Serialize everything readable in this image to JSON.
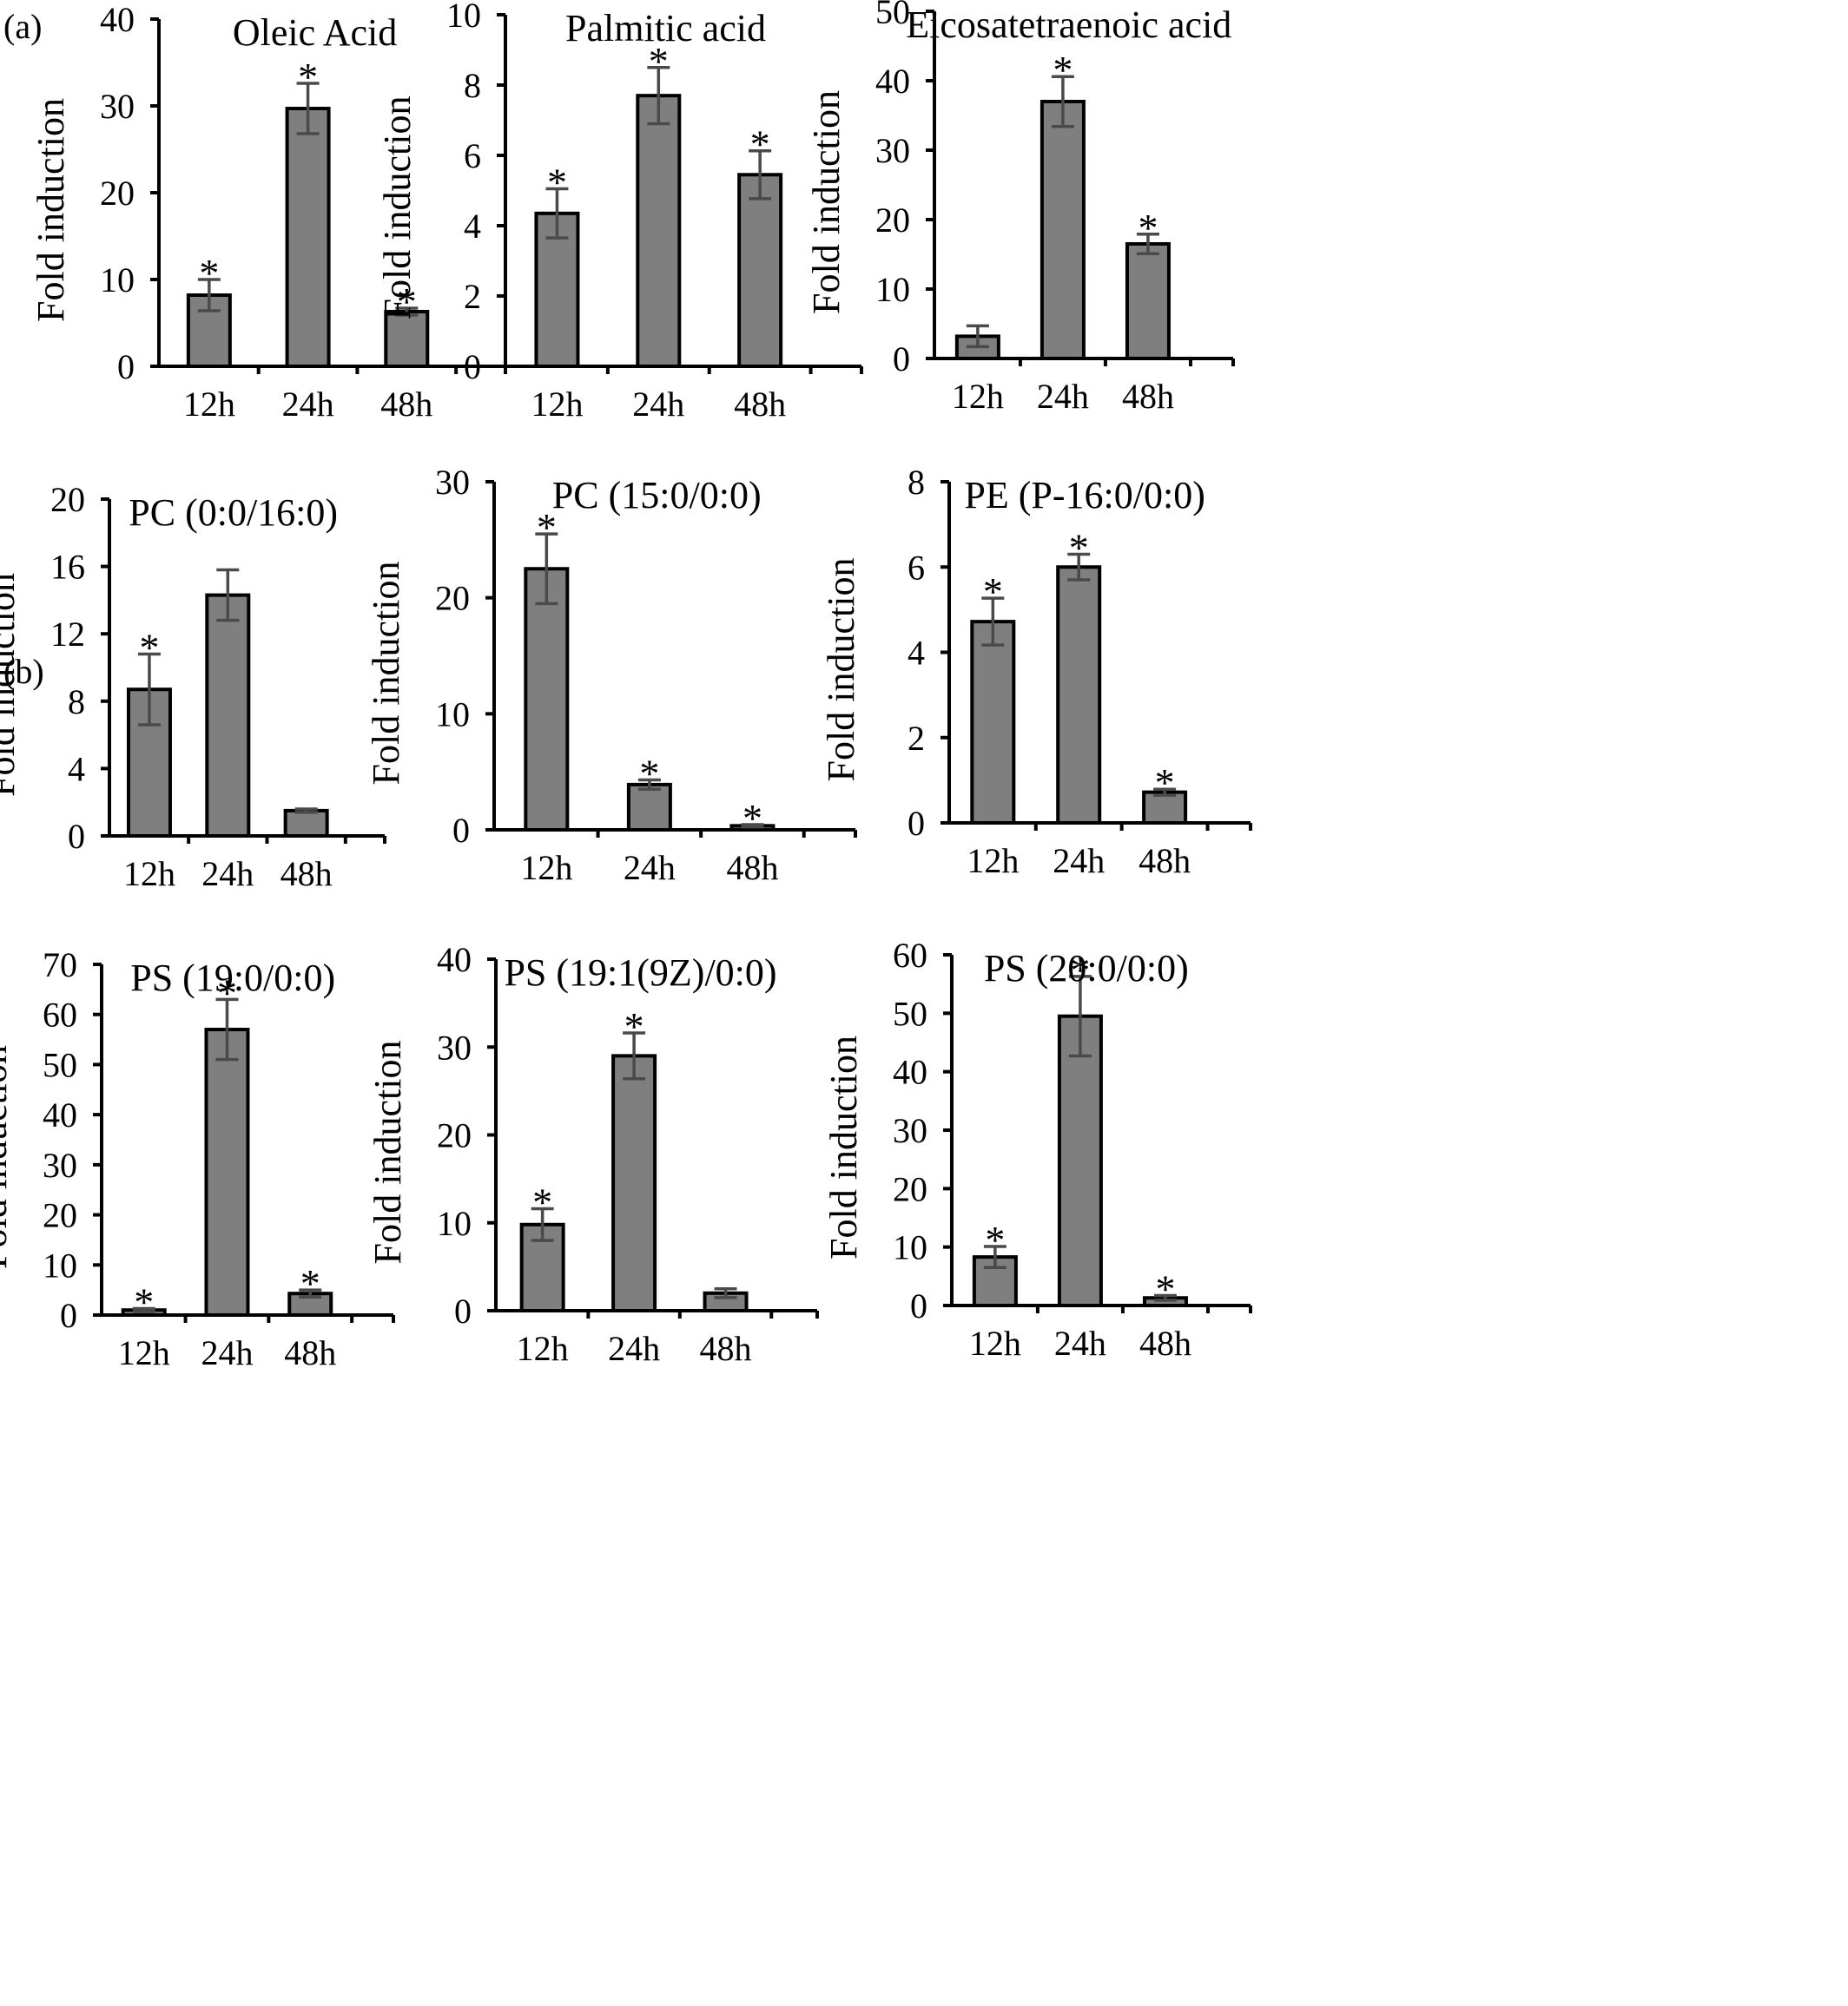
{
  "panel_labels": [
    "(a)",
    "(b)"
  ],
  "chart_data": [
    {
      "type": "bar",
      "title": "Oleic Acid",
      "ylabel": "Fold induction",
      "xlabel": "",
      "categories": [
        "12h",
        "24h",
        "48h"
      ],
      "values": [
        8.2,
        29.7,
        6.3
      ],
      "errors": [
        1.8,
        2.9,
        0.4
      ],
      "significant": [
        true,
        true,
        true
      ],
      "ylim": [
        0,
        40
      ],
      "yticks": [
        0,
        10,
        20,
        30,
        40
      ]
    },
    {
      "type": "bar",
      "title": "Palmitic acid",
      "ylabel": "Fold induction",
      "xlabel": "",
      "categories": [
        "12h",
        "24h",
        "48h"
      ],
      "values": [
        4.35,
        7.7,
        5.45
      ],
      "errors": [
        0.7,
        0.8,
        0.68
      ],
      "significant": [
        true,
        true,
        true
      ],
      "ylim": [
        0,
        10
      ],
      "yticks": [
        0,
        2,
        4,
        6,
        8,
        10
      ]
    },
    {
      "type": "bar",
      "title": "Eicosatetraenoic acid",
      "ylabel": "Fold induction",
      "xlabel": "",
      "categories": [
        "12h",
        "24h",
        "48h"
      ],
      "values": [
        3.2,
        37,
        16.5
      ],
      "errors": [
        1.5,
        3.6,
        1.4
      ],
      "significant": [
        false,
        true,
        true
      ],
      "ylim": [
        0,
        50
      ],
      "yticks": [
        0,
        10,
        20,
        30,
        40,
        50
      ]
    },
    {
      "type": "bar",
      "title": "PC (0:0/16:0)",
      "ylabel": "Fold induction",
      "xlabel": "",
      "categories": [
        "12h",
        "24h",
        "48h"
      ],
      "values": [
        8.7,
        14.3,
        1.5
      ],
      "errors": [
        2.1,
        1.5,
        0.1
      ],
      "significant": [
        true,
        false,
        false
      ],
      "ylim": [
        0,
        20
      ],
      "yticks": [
        0,
        4,
        8,
        12,
        16,
        20
      ]
    },
    {
      "type": "bar",
      "title": "PC (15:0/0:0)",
      "ylabel": "Fold induction",
      "xlabel": "",
      "categories": [
        "12h",
        "24h",
        "48h"
      ],
      "values": [
        22.5,
        3.9,
        0.35
      ],
      "errors": [
        3.0,
        0.4,
        0.1
      ],
      "significant": [
        true,
        true,
        true
      ],
      "ylim": [
        0,
        30
      ],
      "yticks": [
        0,
        10,
        20,
        30
      ]
    },
    {
      "type": "bar",
      "title": "PE (P-16:0/0:0)",
      "ylabel": "Fold induction",
      "xlabel": "",
      "categories": [
        "12h",
        "24h",
        "48h"
      ],
      "values": [
        4.72,
        6.0,
        0.72
      ],
      "errors": [
        0.55,
        0.3,
        0.07
      ],
      "significant": [
        true,
        true,
        true
      ],
      "ylim": [
        0,
        8
      ],
      "yticks": [
        0,
        2,
        4,
        6,
        8
      ]
    },
    {
      "type": "bar",
      "title": "PS (19:0/0:0)",
      "ylabel": "Fold induction",
      "xlabel": "",
      "categories": [
        "12h",
        "24h",
        "48h"
      ],
      "values": [
        1.0,
        57,
        4.3
      ],
      "errors": [
        0.3,
        6.0,
        0.7
      ],
      "significant": [
        true,
        true,
        true
      ],
      "ylim": [
        0,
        70
      ],
      "yticks": [
        0,
        10,
        20,
        30,
        40,
        50,
        60,
        70
      ]
    },
    {
      "type": "bar",
      "title": "PS (19:1(9Z)/0:0)",
      "ylabel": "Fold induction",
      "xlabel": "",
      "categories": [
        "12h",
        "24h",
        "48h"
      ],
      "values": [
        9.8,
        29,
        2.0
      ],
      "errors": [
        1.8,
        2.6,
        0.5
      ],
      "significant": [
        true,
        true,
        false
      ],
      "ylim": [
        0,
        40
      ],
      "yticks": [
        0,
        10,
        20,
        30,
        40
      ]
    },
    {
      "type": "bar",
      "title": "PS (20:0/0:0)",
      "ylabel": "Fold induction",
      "xlabel": "",
      "categories": [
        "12h",
        "24h",
        "48h"
      ],
      "values": [
        8.3,
        49.5,
        1.3
      ],
      "errors": [
        1.8,
        6.8,
        0.4
      ],
      "significant": [
        true,
        true,
        true
      ],
      "ylim": [
        0,
        60
      ],
      "yticks": [
        0,
        10,
        20,
        30,
        40,
        50,
        60
      ]
    }
  ]
}
